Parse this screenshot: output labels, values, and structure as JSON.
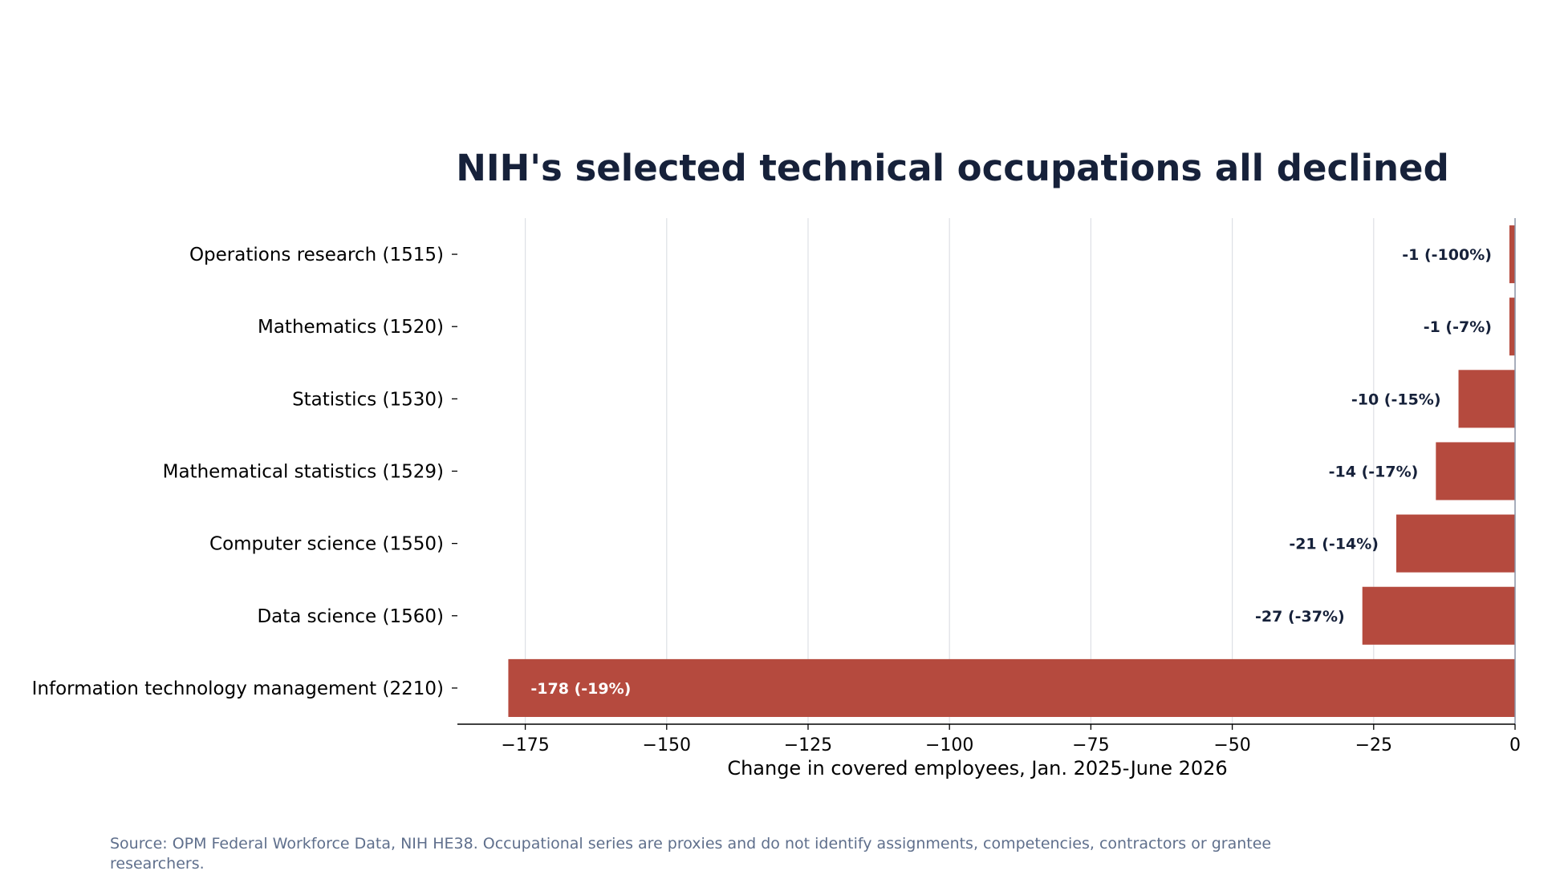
{
  "chart_data": {
    "type": "bar",
    "orientation": "horizontal",
    "title": "NIH's selected technical occupations all declined",
    "xlabel": "Change in covered employees, Jan. 2025-June 2026",
    "ylabel": "",
    "xlim": [
      -187,
      0
    ],
    "xticks": [
      -175,
      -150,
      -125,
      -100,
      -75,
      -50,
      -25,
      0
    ],
    "xtick_labels": [
      "−175",
      "−150",
      "−125",
      "−100",
      "−75",
      "−50",
      "−25",
      "0"
    ],
    "grid": "vertical",
    "categories": [
      "Operations research (1515)",
      "Mathematics (1520)",
      "Statistics (1530)",
      "Mathematical statistics (1529)",
      "Computer science (1550)",
      "Data science (1560)",
      "Information technology management (2210)"
    ],
    "values": [
      -1,
      -1,
      -10,
      -14,
      -21,
      -27,
      -178
    ],
    "data_labels": [
      "-1 (-100%)",
      "-1 (-7%)",
      "-10 (-15%)",
      "-14 (-17%)",
      "-21 (-14%)",
      "-27 (-37%)",
      "-178 (-19%)"
    ],
    "colors": {
      "bar": "#b54a3e",
      "title": "#16213a",
      "label_dark": "#16213a",
      "label_light": "#ffffff",
      "grid": "#dde0e5",
      "zero_line": "#8a93a6",
      "source": "#5f6f8c"
    }
  },
  "source": "Source: OPM Federal Workforce Data, NIH HE38. Occupational series are proxies and do not identify assignments, competencies, contractors or grantee researchers."
}
